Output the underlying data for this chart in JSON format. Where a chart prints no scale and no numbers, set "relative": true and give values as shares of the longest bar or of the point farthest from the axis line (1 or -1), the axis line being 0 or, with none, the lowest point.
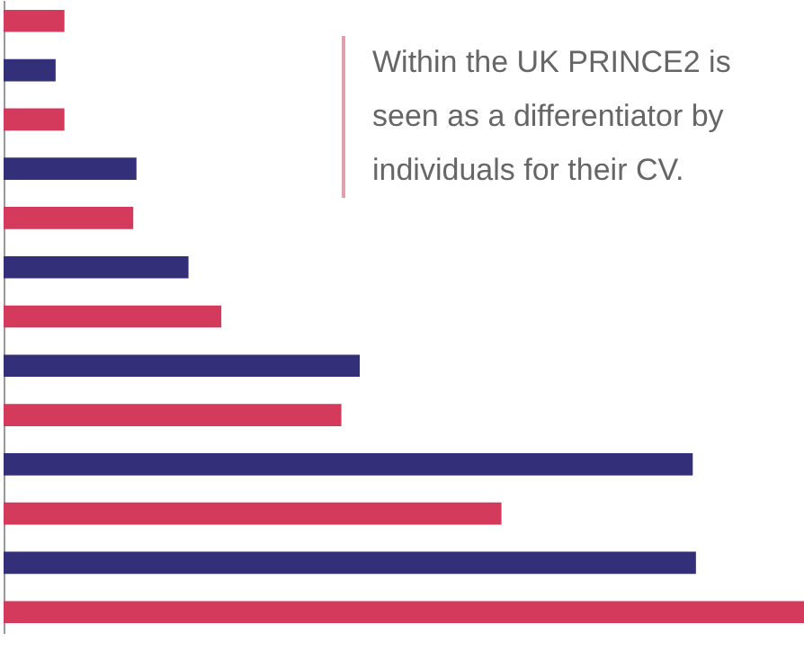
{
  "chart_data": {
    "type": "bar",
    "orientation": "horizontal",
    "relative": true,
    "categories": [
      null,
      null,
      null,
      null,
      null,
      null,
      null,
      null,
      null,
      null,
      null,
      null,
      null
    ],
    "values": [
      0.076,
      0.065,
      0.076,
      0.166,
      0.162,
      0.231,
      0.272,
      0.445,
      0.422,
      0.861,
      0.622,
      0.865,
      1
    ],
    "colors": [
      "#d33a5c",
      "#332f78",
      "#d33a5c",
      "#332f78",
      "#d33a5c",
      "#332f78",
      "#d33a5c",
      "#332f78",
      "#d33a5c",
      "#332f78",
      "#d33a5c",
      "#332f78",
      "#d33a5c"
    ],
    "annotations": [
      "Within the UK PRINCE2 is seen as a differentiator by individuals for their CV."
    ]
  }
}
